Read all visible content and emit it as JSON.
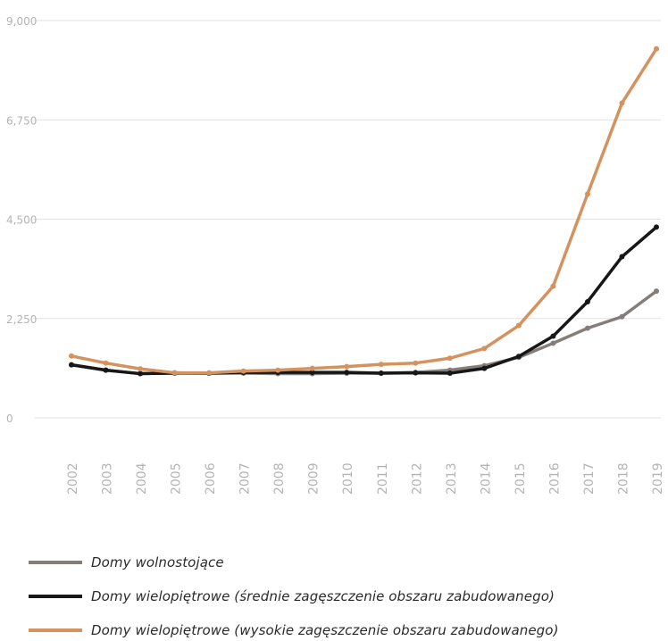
{
  "chart_data": {
    "type": "line",
    "title": "",
    "xlabel": "",
    "ylabel": "",
    "x": [
      "2002",
      "2003",
      "2004",
      "2005",
      "2006",
      "2007",
      "2008",
      "2009",
      "2010",
      "2011",
      "2012",
      "2013",
      "2014",
      "2015",
      "2016",
      "2017",
      "2018",
      "2019"
    ],
    "ylim": [
      0,
      9000
    ],
    "yticks": [
      0,
      2250,
      4500,
      6750,
      9000
    ],
    "ytick_labels": [
      "0",
      "2,250",
      "4,500",
      "6,750",
      "9,000"
    ],
    "grid": true,
    "legend_position": "bottom",
    "series": [
      {
        "name": "Domy wolnostojące",
        "color": "#857d78",
        "values": [
          1200,
          1080,
          1000,
          1020,
          1010,
          1010,
          1000,
          1000,
          1010,
          1010,
          1030,
          1080,
          1180,
          1370,
          1690,
          2030,
          2290,
          2870
        ]
      },
      {
        "name": "Domy wielopiętrowe (średnie zagęszczenie obszaru zabudowanego)",
        "color": "#171717",
        "values": [
          1200,
          1080,
          1000,
          1010,
          1010,
          1030,
          1030,
          1030,
          1030,
          1010,
          1020,
          1010,
          1120,
          1390,
          1850,
          2630,
          3650,
          4320
        ]
      },
      {
        "name": "Domy wielopiętrowe (wysokie zagęszczenie obszaru zabudowanego)",
        "color": "#d4925f",
        "values": [
          1400,
          1240,
          1110,
          1020,
          1020,
          1060,
          1080,
          1120,
          1160,
          1210,
          1240,
          1350,
          1570,
          2090,
          2980,
          5070,
          7130,
          8360
        ]
      }
    ]
  }
}
